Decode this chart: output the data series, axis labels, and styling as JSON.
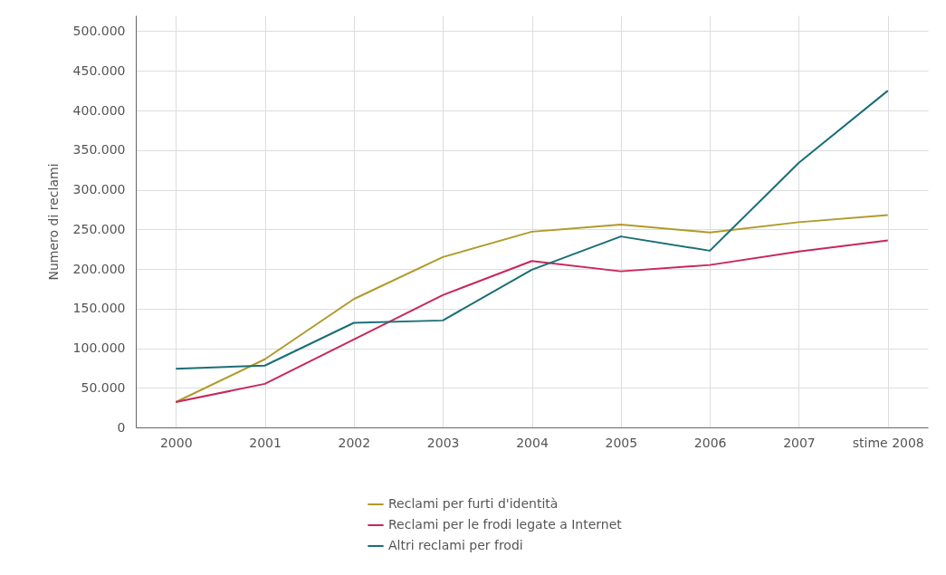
{
  "chart_data": {
    "type": "line",
    "categories": [
      "2000",
      "2001",
      "2002",
      "2003",
      "2004",
      "2005",
      "2006",
      "2007",
      "stime 2008"
    ],
    "ylabel": "Numero di reclami",
    "series": [
      {
        "name": "Reclami per furti d'identità",
        "color": "#b09a2a",
        "values": [
          32000,
          86000,
          162000,
          215000,
          247000,
          256000,
          246000,
          259000,
          268000
        ]
      },
      {
        "name": "Reclami per le frodi legate a Internet",
        "color": "#c8265e",
        "values": [
          32000,
          55000,
          111000,
          167000,
          210000,
          197000,
          205000,
          222000,
          236000
        ]
      },
      {
        "name": "Altri reclami per frodi",
        "color": "#1a6e78",
        "values": [
          74000,
          78000,
          132000,
          135000,
          199000,
          241000,
          223000,
          334000,
          425000
        ]
      }
    ],
    "ylim": [
      0,
      520000
    ],
    "yticks": [
      0,
      {
        "value": 50000,
        "label": "50.000"
      },
      {
        "value": 100000,
        "label": "100.000"
      },
      {
        "value": 150000,
        "label": "150.000"
      },
      {
        "value": 200000,
        "label": "200.000"
      },
      {
        "value": 250000,
        "label": "250.000"
      },
      {
        "value": 300000,
        "label": "300.000"
      },
      {
        "value": 350000,
        "label": "350.000"
      },
      {
        "value": 400000,
        "label": "400.000"
      },
      {
        "value": 450000,
        "label": "450.000"
      },
      {
        "value": 500000,
        "label": "500.000"
      }
    ],
    "grid": true,
    "legend": "bottom"
  }
}
